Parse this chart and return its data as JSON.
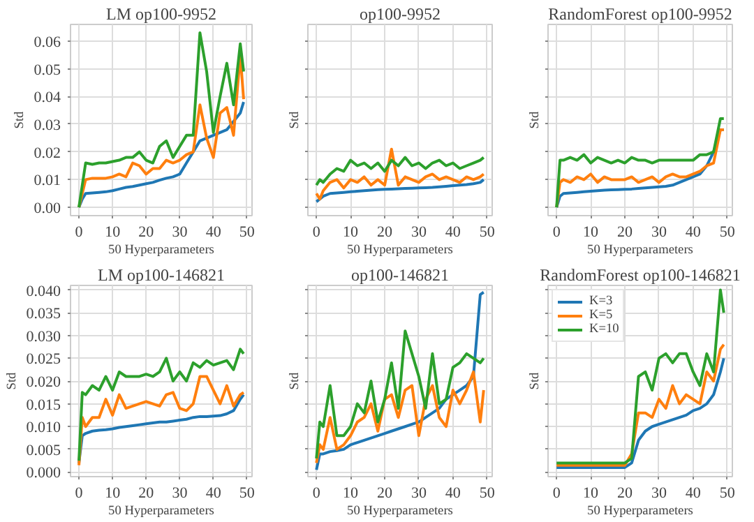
{
  "chart_data": [
    {
      "type": "line",
      "title": "LM op100-9952",
      "xlabel": "50 Hyperparameters",
      "ylabel": "Std",
      "x": [
        0,
        1,
        2,
        4,
        6,
        8,
        10,
        12,
        14,
        16,
        18,
        20,
        22,
        24,
        26,
        28,
        30,
        32,
        34,
        36,
        38,
        40,
        42,
        44,
        46,
        48,
        49
      ],
      "xlim": [
        -2.5,
        51.5
      ],
      "ylim": [
        -0.003,
        0.066
      ],
      "xticks": [
        0,
        10,
        20,
        30,
        40,
        50
      ],
      "yticks": [
        {
          "value": 0,
          "label": "0.00"
        },
        {
          "value": 0.01,
          "label": "0.01"
        },
        {
          "value": 0.02,
          "label": "0.02"
        },
        {
          "value": 0.03,
          "label": "0.03"
        },
        {
          "value": 0.04,
          "label": "0.04"
        },
        {
          "value": 0.05,
          "label": "0.05"
        },
        {
          "value": 0.06,
          "label": "0.06"
        }
      ],
      "grid": true,
      "series": [
        {
          "color": "#1f77b4",
          "values": [
            0,
            0.003,
            0.005,
            0.0052,
            0.0054,
            0.0056,
            0.006,
            0.0066,
            0.0072,
            0.0075,
            0.008,
            0.0085,
            0.009,
            0.0098,
            0.0105,
            0.011,
            0.012,
            0.016,
            0.02,
            0.024,
            0.025,
            0.026,
            0.027,
            0.028,
            0.031,
            0.034,
            0.038
          ]
        },
        {
          "color": "#ff7f0e",
          "values": [
            0,
            0.005,
            0.01,
            0.0105,
            0.0105,
            0.0105,
            0.011,
            0.012,
            0.011,
            0.016,
            0.015,
            0.012,
            0.014,
            0.014,
            0.017,
            0.016,
            0.017,
            0.019,
            0.02,
            0.037,
            0.025,
            0.018,
            0.034,
            0.036,
            0.026,
            0.055,
            0.039
          ]
        },
        {
          "color": "#2ca02c",
          "values": [
            0,
            0.008,
            0.016,
            0.0155,
            0.016,
            0.016,
            0.0165,
            0.017,
            0.018,
            0.018,
            0.02,
            0.017,
            0.016,
            0.022,
            0.024,
            0.018,
            0.022,
            0.026,
            0.026,
            0.063,
            0.049,
            0.027,
            0.04,
            0.052,
            0.037,
            0.059,
            0.049
          ]
        }
      ]
    },
    {
      "type": "line",
      "title": "op100-9952",
      "xlabel": "50 Hyperparameters",
      "ylabel": "Std",
      "x": [
        0,
        1,
        2,
        4,
        6,
        8,
        10,
        12,
        14,
        16,
        18,
        20,
        22,
        24,
        26,
        28,
        30,
        32,
        34,
        36,
        38,
        40,
        42,
        44,
        46,
        48,
        49
      ],
      "xlim": [
        -2.5,
        51.5
      ],
      "ylim": [
        -0.003,
        0.066
      ],
      "xticks": [
        0,
        10,
        20,
        30,
        40,
        50
      ],
      "yticks": [
        0,
        0.01,
        0.02,
        0.03,
        0.04,
        0.05,
        0.06
      ],
      "grid": true,
      "tick_labels": "x",
      "series": [
        {
          "color": "#1f77b4",
          "values": [
            0.002,
            0.003,
            0.004,
            0.005,
            0.0052,
            0.0054,
            0.0056,
            0.0058,
            0.006,
            0.0062,
            0.0064,
            0.0065,
            0.0066,
            0.0067,
            0.0068,
            0.0069,
            0.007,
            0.0071,
            0.0072,
            0.0074,
            0.0076,
            0.0078,
            0.008,
            0.0082,
            0.0085,
            0.009,
            0.01
          ]
        },
        {
          "color": "#ff7f0e",
          "values": [
            0.005,
            0.003,
            0.006,
            0.009,
            0.01,
            0.007,
            0.01,
            0.009,
            0.011,
            0.008,
            0.01,
            0.008,
            0.021,
            0.008,
            0.011,
            0.01,
            0.009,
            0.011,
            0.012,
            0.01,
            0.011,
            0.01,
            0.009,
            0.011,
            0.01,
            0.011,
            0.012
          ]
        },
        {
          "color": "#2ca02c",
          "values": [
            0.008,
            0.01,
            0.009,
            0.012,
            0.014,
            0.013,
            0.017,
            0.015,
            0.016,
            0.014,
            0.016,
            0.013,
            0.017,
            0.015,
            0.018,
            0.015,
            0.016,
            0.014,
            0.016,
            0.017,
            0.015,
            0.016,
            0.014,
            0.015,
            0.016,
            0.017,
            0.018
          ]
        }
      ]
    },
    {
      "type": "line",
      "title": "RandomForest op100-9952",
      "xlabel": "50 Hyperparameters",
      "ylabel": "Std",
      "x": [
        0,
        1,
        2,
        4,
        6,
        8,
        10,
        12,
        14,
        16,
        18,
        20,
        22,
        24,
        26,
        28,
        30,
        32,
        34,
        36,
        38,
        40,
        42,
        44,
        46,
        48,
        49
      ],
      "xlim": [
        -2.5,
        51.5
      ],
      "ylim": [
        -0.003,
        0.066
      ],
      "xticks": [
        0,
        10,
        20,
        30,
        40,
        50
      ],
      "yticks": [
        0,
        0.01,
        0.02,
        0.03,
        0.04,
        0.05,
        0.06
      ],
      "grid": true,
      "tick_labels": "x",
      "series": [
        {
          "color": "#1f77b4",
          "values": [
            0,
            0.004,
            0.005,
            0.0052,
            0.0054,
            0.0056,
            0.0058,
            0.006,
            0.0062,
            0.0063,
            0.0064,
            0.0065,
            0.0066,
            0.0068,
            0.007,
            0.0072,
            0.0074,
            0.0076,
            0.008,
            0.009,
            0.01,
            0.011,
            0.012,
            0.015,
            0.02,
            0.028,
            0.028
          ]
        },
        {
          "color": "#ff7f0e",
          "values": [
            0,
            0.009,
            0.01,
            0.009,
            0.011,
            0.01,
            0.012,
            0.009,
            0.011,
            0.01,
            0.01,
            0.01,
            0.011,
            0.009,
            0.01,
            0.011,
            0.009,
            0.011,
            0.012,
            0.011,
            0.011,
            0.012,
            0.013,
            0.015,
            0.016,
            0.028,
            0.028
          ]
        },
        {
          "color": "#2ca02c",
          "values": [
            0,
            0.017,
            0.017,
            0.018,
            0.017,
            0.019,
            0.016,
            0.018,
            0.017,
            0.016,
            0.017,
            0.016,
            0.018,
            0.017,
            0.017,
            0.016,
            0.017,
            0.017,
            0.017,
            0.017,
            0.017,
            0.017,
            0.019,
            0.019,
            0.02,
            0.032,
            0.032
          ]
        }
      ]
    },
    {
      "type": "line",
      "title": "LM op100-146821",
      "xlabel": "50 Hyperparameters",
      "ylabel": "Std",
      "x": [
        0,
        1,
        2,
        4,
        6,
        8,
        10,
        12,
        14,
        16,
        18,
        20,
        22,
        24,
        26,
        28,
        30,
        32,
        34,
        36,
        38,
        40,
        42,
        44,
        46,
        48,
        49
      ],
      "xlim": [
        -2.5,
        51.5
      ],
      "ylim": [
        -0.001,
        0.041
      ],
      "xticks": [
        0,
        10,
        20,
        30,
        40,
        50
      ],
      "yticks": [
        {
          "value": 0,
          "label": "0.000"
        },
        {
          "value": 0.005,
          "label": "0.005"
        },
        {
          "value": 0.01,
          "label": "0.010"
        },
        {
          "value": 0.015,
          "label": "0.015"
        },
        {
          "value": 0.02,
          "label": "0.020"
        },
        {
          "value": 0.025,
          "label": "0.025"
        },
        {
          "value": 0.03,
          "label": "0.030"
        },
        {
          "value": 0.035,
          "label": "0.035"
        },
        {
          "value": 0.04,
          "label": "0.040"
        }
      ],
      "grid": true,
      "series": [
        {
          "color": "#1f77b4",
          "values": [
            0.002,
            0.008,
            0.0085,
            0.009,
            0.0092,
            0.0093,
            0.0095,
            0.0098,
            0.01,
            0.0102,
            0.0104,
            0.0106,
            0.0108,
            0.011,
            0.011,
            0.0112,
            0.0114,
            0.0116,
            0.012,
            0.0122,
            0.0122,
            0.0123,
            0.0124,
            0.0128,
            0.0135,
            0.016,
            0.017
          ]
        },
        {
          "color": "#ff7f0e",
          "values": [
            0.0015,
            0.012,
            0.01,
            0.012,
            0.012,
            0.016,
            0.0125,
            0.017,
            0.014,
            0.0145,
            0.015,
            0.0155,
            0.015,
            0.0145,
            0.017,
            0.0175,
            0.014,
            0.0135,
            0.015,
            0.021,
            0.021,
            0.018,
            0.015,
            0.019,
            0.0145,
            0.017,
            0.0175
          ]
        },
        {
          "color": "#2ca02c",
          "values": [
            0.0025,
            0.0175,
            0.017,
            0.019,
            0.018,
            0.021,
            0.018,
            0.022,
            0.021,
            0.021,
            0.021,
            0.0215,
            0.021,
            0.022,
            0.025,
            0.02,
            0.022,
            0.02,
            0.024,
            0.023,
            0.0245,
            0.0235,
            0.024,
            0.0245,
            0.0225,
            0.027,
            0.026
          ]
        }
      ]
    },
    {
      "type": "line",
      "title": "op100-146821",
      "xlabel": "50 Hyperparameters",
      "ylabel": "Std",
      "x": [
        0,
        1,
        2,
        4,
        6,
        8,
        10,
        12,
        14,
        16,
        18,
        20,
        22,
        24,
        26,
        28,
        30,
        32,
        34,
        36,
        38,
        40,
        42,
        44,
        46,
        48,
        49
      ],
      "xlim": [
        -2.5,
        51.5
      ],
      "ylim": [
        -0.001,
        0.041
      ],
      "xticks": [
        0,
        10,
        20,
        30,
        40,
        50
      ],
      "yticks": [
        0,
        0.005,
        0.01,
        0.015,
        0.02,
        0.025,
        0.03,
        0.035,
        0.04
      ],
      "grid": true,
      "tick_labels": "x",
      "series": [
        {
          "color": "#1f77b4",
          "values": [
            0.0005,
            0.004,
            0.004,
            0.0045,
            0.0047,
            0.005,
            0.006,
            0.0065,
            0.007,
            0.0075,
            0.008,
            0.0085,
            0.009,
            0.0095,
            0.01,
            0.0105,
            0.011,
            0.012,
            0.013,
            0.014,
            0.016,
            0.017,
            0.018,
            0.019,
            0.021,
            0.039,
            0.0395
          ]
        },
        {
          "color": "#ff7f0e",
          "values": [
            0.002,
            0.006,
            0.005,
            0.012,
            0.005,
            0.006,
            0.008,
            0.011,
            0.012,
            0.015,
            0.009,
            0.016,
            0.017,
            0.012,
            0.018,
            0.019,
            0.008,
            0.016,
            0.019,
            0.012,
            0.01,
            0.018,
            0.015,
            0.018,
            0.022,
            0.011,
            0.018
          ]
        },
        {
          "color": "#2ca02c",
          "values": [
            0.003,
            0.011,
            0.01,
            0.019,
            0.008,
            0.008,
            0.01,
            0.015,
            0.013,
            0.02,
            0.011,
            0.016,
            0.024,
            0.014,
            0.031,
            0.026,
            0.021,
            0.014,
            0.026,
            0.015,
            0.016,
            0.023,
            0.024,
            0.026,
            0.025,
            0.024,
            0.025
          ]
        }
      ]
    },
    {
      "type": "line",
      "title": "RandomForest op100-146821",
      "xlabel": "50 Hyperparameters",
      "ylabel": "Std",
      "x": [
        0,
        1,
        2,
        4,
        6,
        8,
        10,
        12,
        14,
        16,
        18,
        20,
        22,
        24,
        26,
        28,
        30,
        32,
        34,
        36,
        38,
        40,
        42,
        44,
        46,
        48,
        49
      ],
      "xlim": [
        -2.5,
        51.5
      ],
      "ylim": [
        -0.001,
        0.041
      ],
      "xticks": [
        0,
        10,
        20,
        30,
        40,
        50
      ],
      "yticks": [
        0,
        0.005,
        0.01,
        0.015,
        0.02,
        0.025,
        0.03,
        0.035,
        0.04
      ],
      "grid": true,
      "tick_labels": "x",
      "legend": "top left",
      "series": [
        {
          "name": "K=3",
          "color": "#1f77b4",
          "values": [
            0.001,
            0.001,
            0.001,
            0.001,
            0.001,
            0.001,
            0.001,
            0.001,
            0.001,
            0.001,
            0.001,
            0.001,
            0.002,
            0.007,
            0.009,
            0.01,
            0.0105,
            0.011,
            0.0115,
            0.012,
            0.0125,
            0.0135,
            0.014,
            0.015,
            0.017,
            0.022,
            0.025
          ]
        },
        {
          "name": "K=5",
          "color": "#ff7f0e",
          "values": [
            0.0015,
            0.0015,
            0.0015,
            0.0015,
            0.0015,
            0.0015,
            0.0015,
            0.0015,
            0.0015,
            0.0015,
            0.0015,
            0.0015,
            0.004,
            0.013,
            0.013,
            0.012,
            0.016,
            0.014,
            0.019,
            0.015,
            0.017,
            0.016,
            0.015,
            0.022,
            0.02,
            0.027,
            0.028
          ]
        },
        {
          "name": "K=10",
          "color": "#2ca02c",
          "values": [
            0.002,
            0.002,
            0.002,
            0.002,
            0.002,
            0.002,
            0.002,
            0.002,
            0.002,
            0.002,
            0.002,
            0.002,
            0.003,
            0.021,
            0.022,
            0.018,
            0.025,
            0.026,
            0.024,
            0.026,
            0.026,
            0.022,
            0.019,
            0.026,
            0.022,
            0.04,
            0.035
          ]
        }
      ]
    }
  ]
}
